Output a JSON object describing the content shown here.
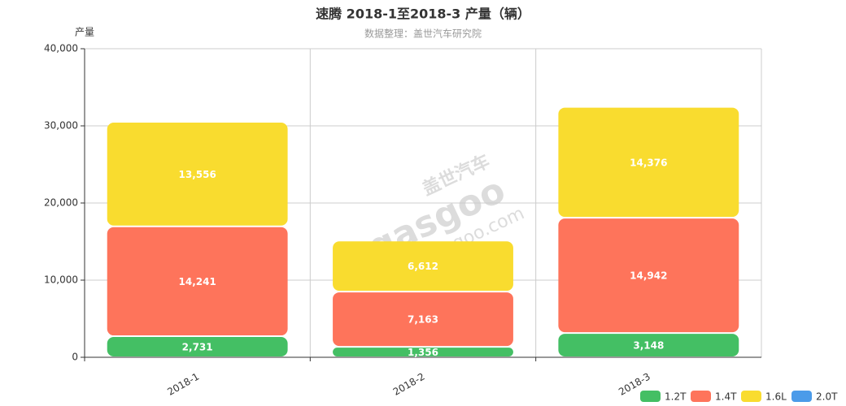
{
  "chart_data": {
    "type": "stacked-bar",
    "title": "速腾 2018-1至2018-3 产量（辆）",
    "subtitle": "数据整理：盖世汽车研究院",
    "y_label": "产量",
    "watermark": [
      "盖世汽车",
      "gasgoo",
      "auto.gasgoo.com"
    ],
    "categories": [
      "2018-1",
      "2018-2",
      "2018-3"
    ],
    "series": [
      {
        "name": "1.2T",
        "color": "#44bf64",
        "values": [
          2731,
          1356,
          3148
        ],
        "value_labels": [
          "2,731",
          "1,356",
          "3,148"
        ]
      },
      {
        "name": "1.4T",
        "color": "#fe745b",
        "values": [
          14241,
          7163,
          14942
        ],
        "value_labels": [
          "14,241",
          "7,163",
          "14,942"
        ]
      },
      {
        "name": "1.6L",
        "color": "#f9dc2f",
        "values": [
          13556,
          6612,
          14376
        ],
        "value_labels": [
          "13,556",
          "6,612",
          "14,376"
        ]
      },
      {
        "name": "2.0T",
        "color": "#4b9be9",
        "values": [
          0,
          0,
          0
        ]
      }
    ],
    "ylim": [
      0,
      40000
    ],
    "yticks": [
      0,
      {
        "value": 10000,
        "label": "10,000"
      },
      {
        "value": 20000,
        "label": "20,000"
      },
      {
        "value": 30000,
        "label": "30,000"
      },
      {
        "value": 40000,
        "label": "40,000"
      }
    ],
    "grid": true,
    "legend": "bottom-right"
  }
}
